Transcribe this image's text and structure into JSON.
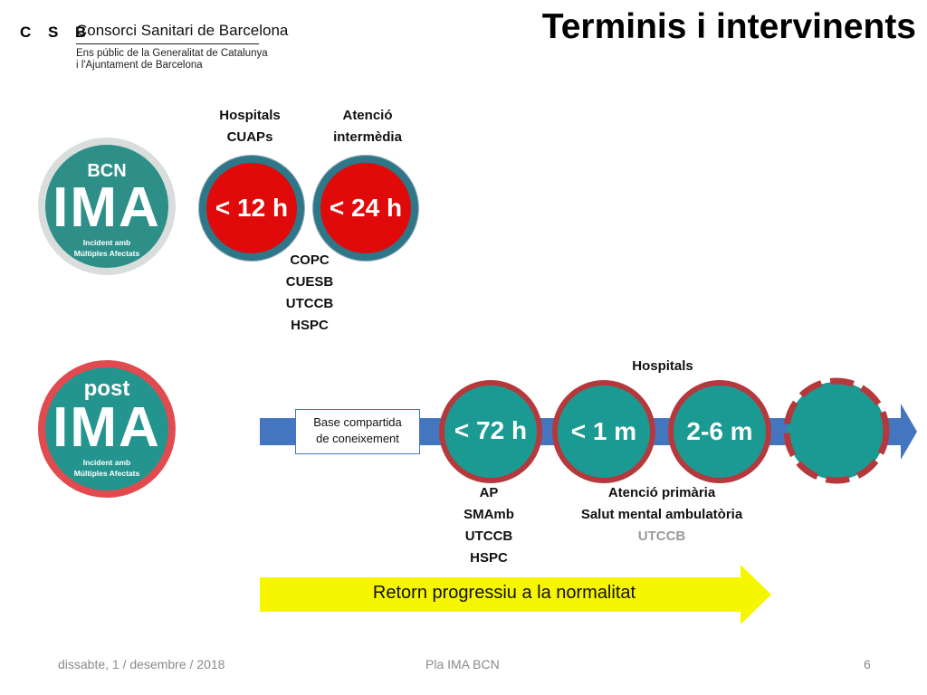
{
  "header": {
    "logo_mark": "C S B",
    "org_name": "Consorci Sanitari de Barcelona",
    "org_sub_1": "Ens públic de la Generalitat de Catalunya",
    "org_sub_2": "i l'Ajuntament de Barcelona",
    "title": "Terminis i intervinents"
  },
  "badges": {
    "bcn": {
      "top": "BCN",
      "main": "IMA",
      "caption_1": "Incident amb",
      "caption_2": "Múltiples Afectats"
    },
    "post": {
      "top": "post",
      "main": "IMA",
      "caption_1": "Incident amb",
      "caption_2": "Múltiples Afectats"
    }
  },
  "top_section": {
    "label_left": [
      "Hospitals",
      "CUAPs"
    ],
    "label_right": [
      "Atenció",
      "intermèdia"
    ],
    "circle_left": "< 12 h",
    "circle_right": "< 24 h",
    "below": [
      "COPC",
      "CUESB",
      "UTCCB",
      "HSPC"
    ]
  },
  "timeline": {
    "base_box": [
      "Base compartida",
      "de coneixement"
    ],
    "hospitals_label": "Hospitals",
    "circles": [
      "< 72 h",
      "< 1 m",
      "2-6 m"
    ],
    "left_group": [
      "AP",
      "SMAmb",
      "UTCCB",
      "HSPC"
    ],
    "right_group": [
      "Atenció primària",
      "Salut mental ambulatòria",
      "UTCCB"
    ],
    "return_arrow": "Retorn progressiu a la normalitat"
  },
  "colors": {
    "red": "#e10a0a",
    "teal": "#1a9a93",
    "blue_arrow": "#4476c0",
    "yellow_arrow": "#f6f600",
    "maroon_ring": "#b5393c"
  },
  "footer": {
    "date": "dissabte, 1 / desembre / 2018",
    "center": "Pla IMA BCN",
    "page": "6"
  }
}
